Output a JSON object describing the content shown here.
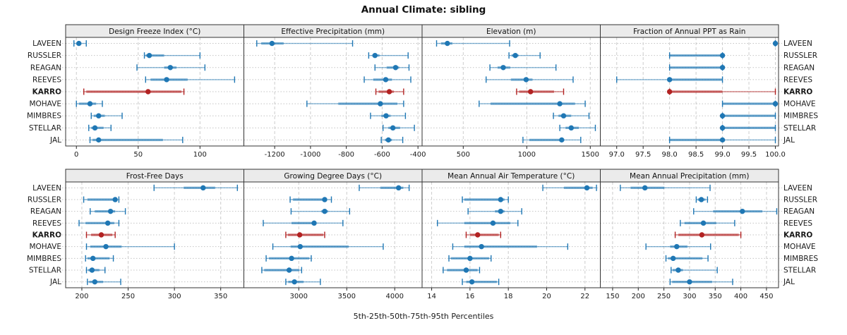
{
  "title": "Annual Climate: sibling",
  "footer": "5th-25th-50th-75th-95th Percentiles",
  "stations": [
    "LAVEEN",
    "RUSSLER",
    "REAGAN",
    "REEVES",
    "KARRO",
    "MOHAVE",
    "MIMBRES",
    "STELLAR",
    "JAL"
  ],
  "highlight_station": "KARRO",
  "colors": {
    "normal": "#1f77b4",
    "highlight": "#b22222",
    "header_fill": "#ebebeb",
    "panel_border": "#333333",
    "grid_vertical": "#cccccc",
    "grid_horizontal": "#c4c4c4",
    "text": "#1a1a1a"
  },
  "chart_data": {
    "type": "errorbar-dotplot",
    "percentiles": [
      5,
      25,
      50,
      75,
      95
    ],
    "title": "Annual Climate: sibling",
    "xlabel": "5th-25th-50th-75th-95th Percentiles",
    "grid": true,
    "panels": [
      {
        "title": "Design Freeze Index (°C)",
        "row": 0,
        "col": 0,
        "xlim": [
          -8.7,
          135.5
        ],
        "ticks": [
          0,
          50,
          100
        ],
        "tick_labels": [
          "0",
          "50",
          "100"
        ],
        "values": [
          [
            -2,
            0,
            2,
            4,
            8
          ],
          [
            55,
            56,
            59,
            71,
            100
          ],
          [
            49,
            71,
            76,
            81,
            104
          ],
          [
            56,
            60,
            73,
            90,
            128
          ],
          [
            6,
            8,
            58,
            85,
            87
          ],
          [
            0,
            2,
            11,
            16,
            21
          ],
          [
            12,
            14,
            18,
            23,
            37
          ],
          [
            10,
            12,
            15,
            22,
            28
          ],
          [
            11,
            13,
            18,
            70,
            86
          ]
        ]
      },
      {
        "title": "Effective Precipitation (mm)",
        "row": 0,
        "col": 1,
        "xlim": [
          -1372,
          -377
        ],
        "ticks": [
          -1200,
          -1000,
          -800,
          -600,
          -400
        ],
        "tick_labels": [
          "-1200",
          "-1000",
          "-800",
          "-600",
          "-400"
        ],
        "values": [
          [
            -1300,
            -1275,
            -1215,
            -1150,
            -765
          ],
          [
            -675,
            -655,
            -640,
            -615,
            -455
          ],
          [
            -640,
            -575,
            -525,
            -505,
            -450
          ],
          [
            -700,
            -650,
            -580,
            -545,
            -440
          ],
          [
            -635,
            -620,
            -560,
            -535,
            -480
          ],
          [
            -1020,
            -845,
            -610,
            -515,
            -480
          ],
          [
            -665,
            -605,
            -578,
            -553,
            -470
          ],
          [
            -595,
            -565,
            -540,
            -500,
            -420
          ],
          [
            -605,
            -585,
            -565,
            -545,
            -485
          ]
        ]
      },
      {
        "title": "Elevation (m)",
        "row": 0,
        "col": 2,
        "xlim": [
          176,
          1579
        ],
        "ticks": [
          500,
          1000,
          1500
        ],
        "tick_labels": [
          "500",
          "1000",
          "1500"
        ],
        "values": [
          [
            290,
            325,
            375,
            415,
            865
          ],
          [
            860,
            880,
            910,
            935,
            1105
          ],
          [
            710,
            770,
            815,
            870,
            1230
          ],
          [
            680,
            875,
            995,
            1045,
            1365
          ],
          [
            920,
            940,
            1030,
            1215,
            1290
          ],
          [
            625,
            715,
            1260,
            1380,
            1460
          ],
          [
            1210,
            1250,
            1290,
            1350,
            1490
          ],
          [
            1260,
            1305,
            1350,
            1410,
            1540
          ],
          [
            970,
            1020,
            1275,
            1295,
            1425
          ]
        ]
      },
      {
        "title": "Fraction of Annual PPT as Rain",
        "row": 0,
        "col": 3,
        "xlim": [
          96.69,
          100.06
        ],
        "ticks": [
          97.0,
          97.5,
          98.0,
          98.5,
          99.0,
          99.5,
          100.0
        ],
        "tick_labels": [
          "97.0",
          "97.5",
          "98.0",
          "98.5",
          "99.0",
          "99.5",
          "100.0"
        ],
        "values": [
          [
            100,
            100,
            100,
            100,
            100
          ],
          [
            98,
            98,
            99,
            99,
            99
          ],
          [
            98,
            98,
            99,
            99,
            99
          ],
          [
            97,
            98,
            98,
            99,
            99
          ],
          [
            98,
            98,
            98,
            99,
            100
          ],
          [
            99,
            99,
            100,
            100,
            100
          ],
          [
            99,
            99,
            99,
            100,
            100
          ],
          [
            99,
            99,
            99,
            100,
            100
          ],
          [
            98,
            98,
            99,
            99,
            100
          ]
        ]
      },
      {
        "title": "Frost-Free Days",
        "row": 1,
        "col": 0,
        "xlim": [
          182.5,
          375
        ],
        "ticks": [
          200,
          250,
          300,
          350
        ],
        "tick_labels": [
          "200",
          "250",
          "300",
          "350"
        ],
        "values": [
          [
            278,
            310,
            331,
            344,
            368
          ],
          [
            202,
            206,
            236,
            238,
            240
          ],
          [
            209,
            214,
            231,
            236,
            247
          ],
          [
            197,
            204,
            228,
            235,
            240
          ],
          [
            205,
            210,
            221,
            233,
            236
          ],
          [
            205,
            209,
            226,
            243,
            300
          ],
          [
            204,
            206,
            212,
            230,
            234
          ],
          [
            205,
            207,
            211,
            219,
            225
          ],
          [
            206,
            208,
            214,
            223,
            242
          ]
        ]
      },
      {
        "title": "Growing Degree Days (°C)",
        "row": 1,
        "col": 1,
        "xlim": [
          2428,
          4285
        ],
        "ticks": [
          3000,
          3500,
          4000
        ],
        "tick_labels": [
          "3000",
          "3500",
          "4000"
        ],
        "values": [
          [
            3630,
            3850,
            4040,
            4090,
            4150
          ],
          [
            2910,
            2940,
            3270,
            3295,
            3340
          ],
          [
            2920,
            3235,
            3270,
            3305,
            3530
          ],
          [
            2630,
            2925,
            3160,
            3180,
            3460
          ],
          [
            2865,
            2885,
            3010,
            3255,
            3270
          ],
          [
            2730,
            2915,
            3015,
            3520,
            3880
          ],
          [
            2660,
            2690,
            2925,
            3110,
            3130
          ],
          [
            2615,
            2640,
            2900,
            3005,
            3030
          ],
          [
            2865,
            2890,
            2955,
            3050,
            3225
          ]
        ]
      },
      {
        "title": "Mean Annual Air Temperature (°C)",
        "row": 1,
        "col": 2,
        "xlim": [
          13.5,
          22.8
        ],
        "ticks": [
          14,
          16,
          18,
          20,
          22
        ],
        "tick_labels": [
          "14",
          "16",
          "18",
          "20",
          "22"
        ],
        "values": [
          [
            19.8,
            20.9,
            22.1,
            22.4,
            22.6
          ],
          [
            15.6,
            15.7,
            17.6,
            17.8,
            18.0
          ],
          [
            15.9,
            17.3,
            17.6,
            17.8,
            18.7
          ],
          [
            14.3,
            15.7,
            17.2,
            18.1,
            18.5
          ],
          [
            15.8,
            16.0,
            16.4,
            17.5,
            17.6
          ],
          [
            15.1,
            15.7,
            16.6,
            19.5,
            21.1
          ],
          [
            14.9,
            15.0,
            16.0,
            17.0,
            17.1
          ],
          [
            14.6,
            14.8,
            15.8,
            16.4,
            16.5
          ],
          [
            15.6,
            15.8,
            16.1,
            17.4,
            17.5
          ]
        ]
      },
      {
        "title": "Mean Annual Precipitation (mm)",
        "row": 1,
        "col": 3,
        "xlim": [
          126,
          473.5
        ],
        "ticks": [
          150,
          200,
          250,
          300,
          350,
          400,
          450
        ],
        "tick_labels": [
          "150",
          "200",
          "250",
          "300",
          "350",
          "400",
          "450"
        ],
        "values": [
          [
            165,
            185,
            213,
            251,
            340
          ],
          [
            313,
            316,
            323,
            331,
            335
          ],
          [
            308,
            346,
            403,
            442,
            470
          ],
          [
            282,
            290,
            327,
            352,
            388
          ],
          [
            272,
            278,
            324,
            396,
            400
          ],
          [
            215,
            262,
            275,
            296,
            341
          ],
          [
            254,
            258,
            268,
            325,
            336
          ],
          [
            264,
            267,
            278,
            287,
            354
          ],
          [
            262,
            266,
            300,
            344,
            384
          ]
        ]
      }
    ]
  }
}
